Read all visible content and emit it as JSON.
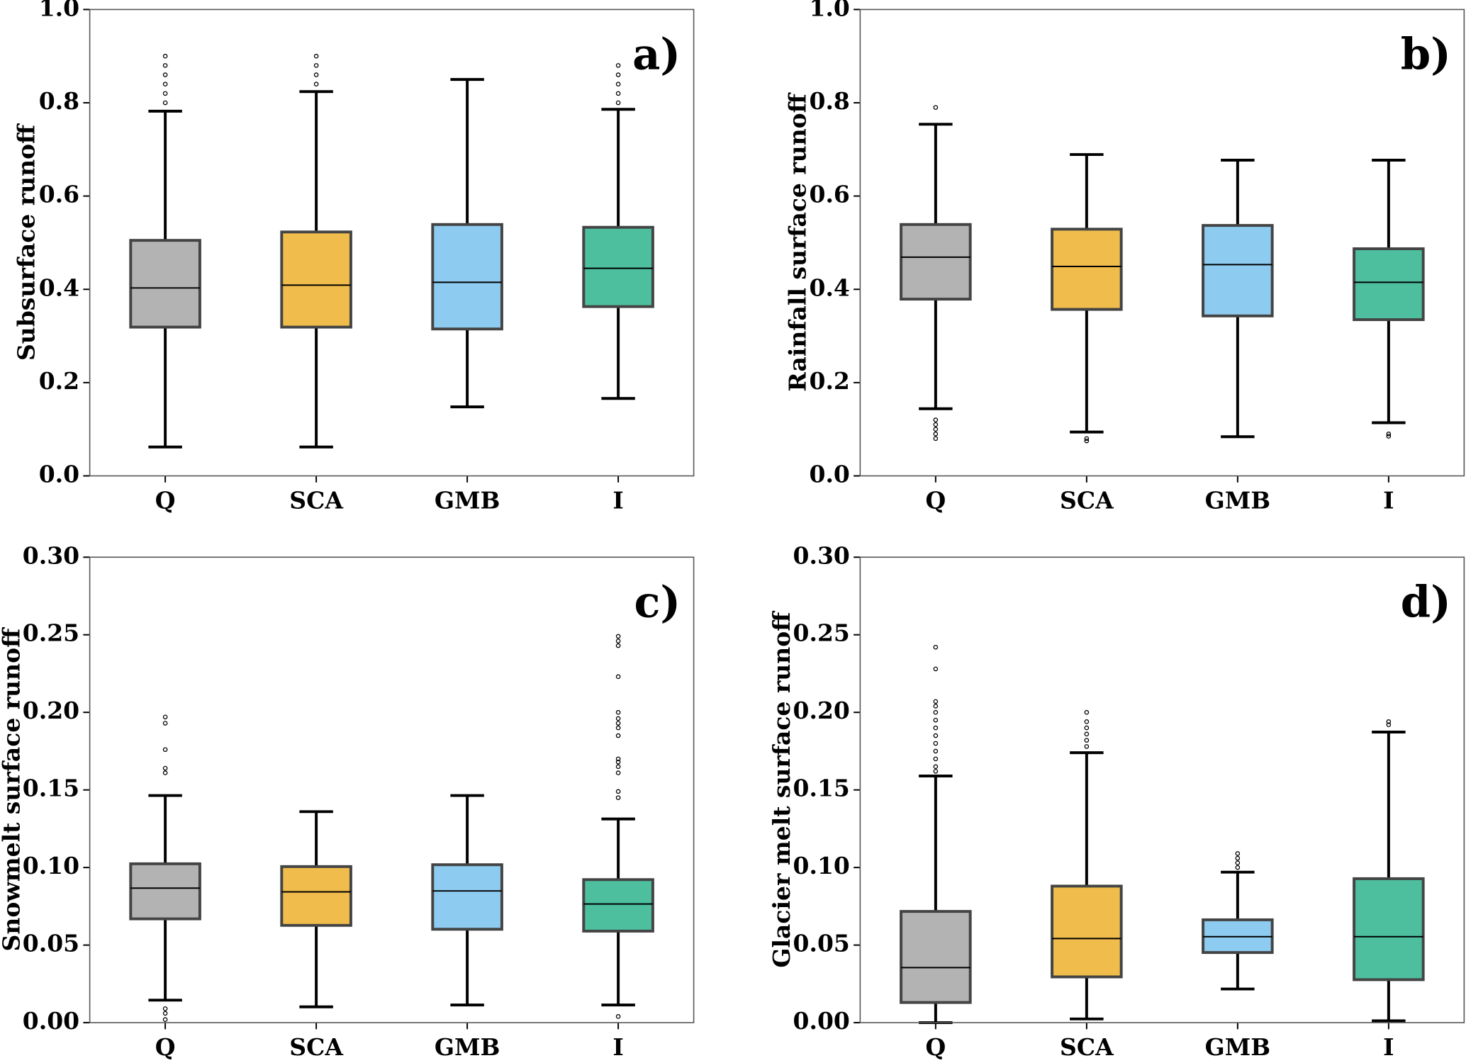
{
  "chart_data": [
    {
      "type": "box",
      "panel_label": "a)",
      "ylabel": "Subsurface runoff",
      "categories": [
        "Q",
        "SCA",
        "GMB",
        "I"
      ],
      "colors": [
        "#b3b3b3",
        "#f0bd4c",
        "#8dcbf0",
        "#4dbf9e"
      ],
      "ylim": [
        0,
        1
      ],
      "yticks": [
        {
          "value": 0,
          "label": "0.0"
        },
        0.2,
        0.4,
        0.6,
        0.8,
        {
          "value": 1,
          "label": "1.0"
        }
      ],
      "boxes": [
        {
          "whislo": 0.062,
          "q1": 0.319,
          "med": 0.403,
          "q3": 0.505,
          "whishi": 0.782,
          "fliers": [
            0.8,
            0.82,
            0.84,
            0.86,
            0.88,
            0.9
          ]
        },
        {
          "whislo": 0.062,
          "q1": 0.319,
          "med": 0.409,
          "q3": 0.523,
          "whishi": 0.824,
          "fliers": [
            0.84,
            0.86,
            0.88,
            0.9
          ]
        },
        {
          "whislo": 0.148,
          "q1": 0.315,
          "med": 0.415,
          "q3": 0.539,
          "whishi": 0.85,
          "fliers": []
        },
        {
          "whislo": 0.166,
          "q1": 0.363,
          "med": 0.445,
          "q3": 0.533,
          "whishi": 0.786,
          "fliers": [
            0.8,
            0.82,
            0.84,
            0.86,
            0.88
          ]
        }
      ]
    },
    {
      "type": "box",
      "panel_label": "b)",
      "ylabel": "Rainfall surface runoff",
      "categories": [
        "Q",
        "SCA",
        "GMB",
        "I"
      ],
      "colors": [
        "#b3b3b3",
        "#f0bd4c",
        "#8dcbf0",
        "#4dbf9e"
      ],
      "ylim": [
        0,
        1
      ],
      "yticks": [
        {
          "value": 0,
          "label": "0.0"
        },
        0.2,
        0.4,
        0.6,
        0.8,
        {
          "value": 1,
          "label": "1.0"
        }
      ],
      "boxes": [
        {
          "whislo": 0.144,
          "q1": 0.379,
          "med": 0.469,
          "q3": 0.539,
          "whishi": 0.754,
          "fliers": [
            0.08,
            0.09,
            0.1,
            0.11,
            0.12,
            0.79
          ]
        },
        {
          "whislo": 0.094,
          "q1": 0.357,
          "med": 0.449,
          "q3": 0.529,
          "whishi": 0.689,
          "fliers": [
            0.075,
            0.08
          ]
        },
        {
          "whislo": 0.084,
          "q1": 0.343,
          "med": 0.453,
          "q3": 0.537,
          "whishi": 0.677,
          "fliers": []
        },
        {
          "whislo": 0.114,
          "q1": 0.335,
          "med": 0.415,
          "q3": 0.487,
          "whishi": 0.677,
          "fliers": [
            0.085,
            0.09
          ]
        }
      ]
    },
    {
      "type": "box",
      "panel_label": "c)",
      "ylabel": "Snowmelt surface runoff",
      "categories": [
        "Q",
        "SCA",
        "GMB",
        "I"
      ],
      "colors": [
        "#b3b3b3",
        "#f0bd4c",
        "#8dcbf0",
        "#4dbf9e"
      ],
      "ylim": [
        0,
        0.3
      ],
      "yticks": [
        {
          "value": 0,
          "label": "0.00"
        },
        0.05,
        {
          "value": 0.1,
          "label": "0.10"
        },
        0.15,
        {
          "value": 0.2,
          "label": "0.20"
        },
        0.25,
        {
          "value": 0.3,
          "label": "0.30"
        }
      ],
      "boxes": [
        {
          "whislo": 0.0145,
          "q1": 0.0669,
          "med": 0.0867,
          "q3": 0.1024,
          "whishi": 0.1464,
          "fliers": [
            0.002,
            0.006,
            0.009,
            0.161,
            0.164,
            0.176,
            0.193,
            0.197
          ]
        },
        {
          "whislo": 0.0102,
          "q1": 0.0627,
          "med": 0.0843,
          "q3": 0.1006,
          "whishi": 0.136,
          "fliers": []
        },
        {
          "whislo": 0.0114,
          "q1": 0.0602,
          "med": 0.0849,
          "q3": 0.1018,
          "whishi": 0.1464,
          "fliers": []
        },
        {
          "whislo": 0.0114,
          "q1": 0.059,
          "med": 0.0765,
          "q3": 0.0922,
          "whishi": 0.1313,
          "fliers": [
            0.004,
            0.145,
            0.149,
            0.161,
            0.165,
            0.168,
            0.17,
            0.185,
            0.19,
            0.193,
            0.196,
            0.2,
            0.223,
            0.243,
            0.246,
            0.249
          ]
        }
      ]
    },
    {
      "type": "box",
      "panel_label": "d)",
      "ylabel": "Glacier melt surface runoff",
      "categories": [
        "Q",
        "SCA",
        "GMB",
        "I"
      ],
      "colors": [
        "#b3b3b3",
        "#f0bd4c",
        "#8dcbf0",
        "#4dbf9e"
      ],
      "ylim": [
        0,
        0.3
      ],
      "yticks": [
        {
          "value": 0,
          "label": "0.00"
        },
        0.05,
        {
          "value": 0.1,
          "label": "0.10"
        },
        0.15,
        {
          "value": 0.2,
          "label": "0.20"
        },
        0.25,
        {
          "value": 0.3,
          "label": "0.30"
        }
      ],
      "boxes": [
        {
          "whislo": 0,
          "q1": 0.013,
          "med": 0.0355,
          "q3": 0.0717,
          "whishi": 0.159,
          "fliers": [
            0.162,
            0.165,
            0.17,
            0.175,
            0.18,
            0.185,
            0.19,
            0.195,
            0.2,
            0.204,
            0.207,
            0.228,
            0.242
          ]
        },
        {
          "whislo": 0.0024,
          "q1": 0.0295,
          "med": 0.0542,
          "q3": 0.088,
          "whishi": 0.174,
          "fliers": [
            0.178,
            0.182,
            0.186,
            0.19,
            0.194,
            0.2
          ]
        },
        {
          "whislo": 0.0217,
          "q1": 0.0452,
          "med": 0.0554,
          "q3": 0.0663,
          "whishi": 0.097,
          "fliers": [
            0.1,
            0.103,
            0.106,
            0.109
          ]
        },
        {
          "whislo": 0.0012,
          "q1": 0.0277,
          "med": 0.0554,
          "q3": 0.0928,
          "whishi": 0.1873,
          "fliers": [
            0.192,
            0.194
          ]
        }
      ]
    }
  ]
}
